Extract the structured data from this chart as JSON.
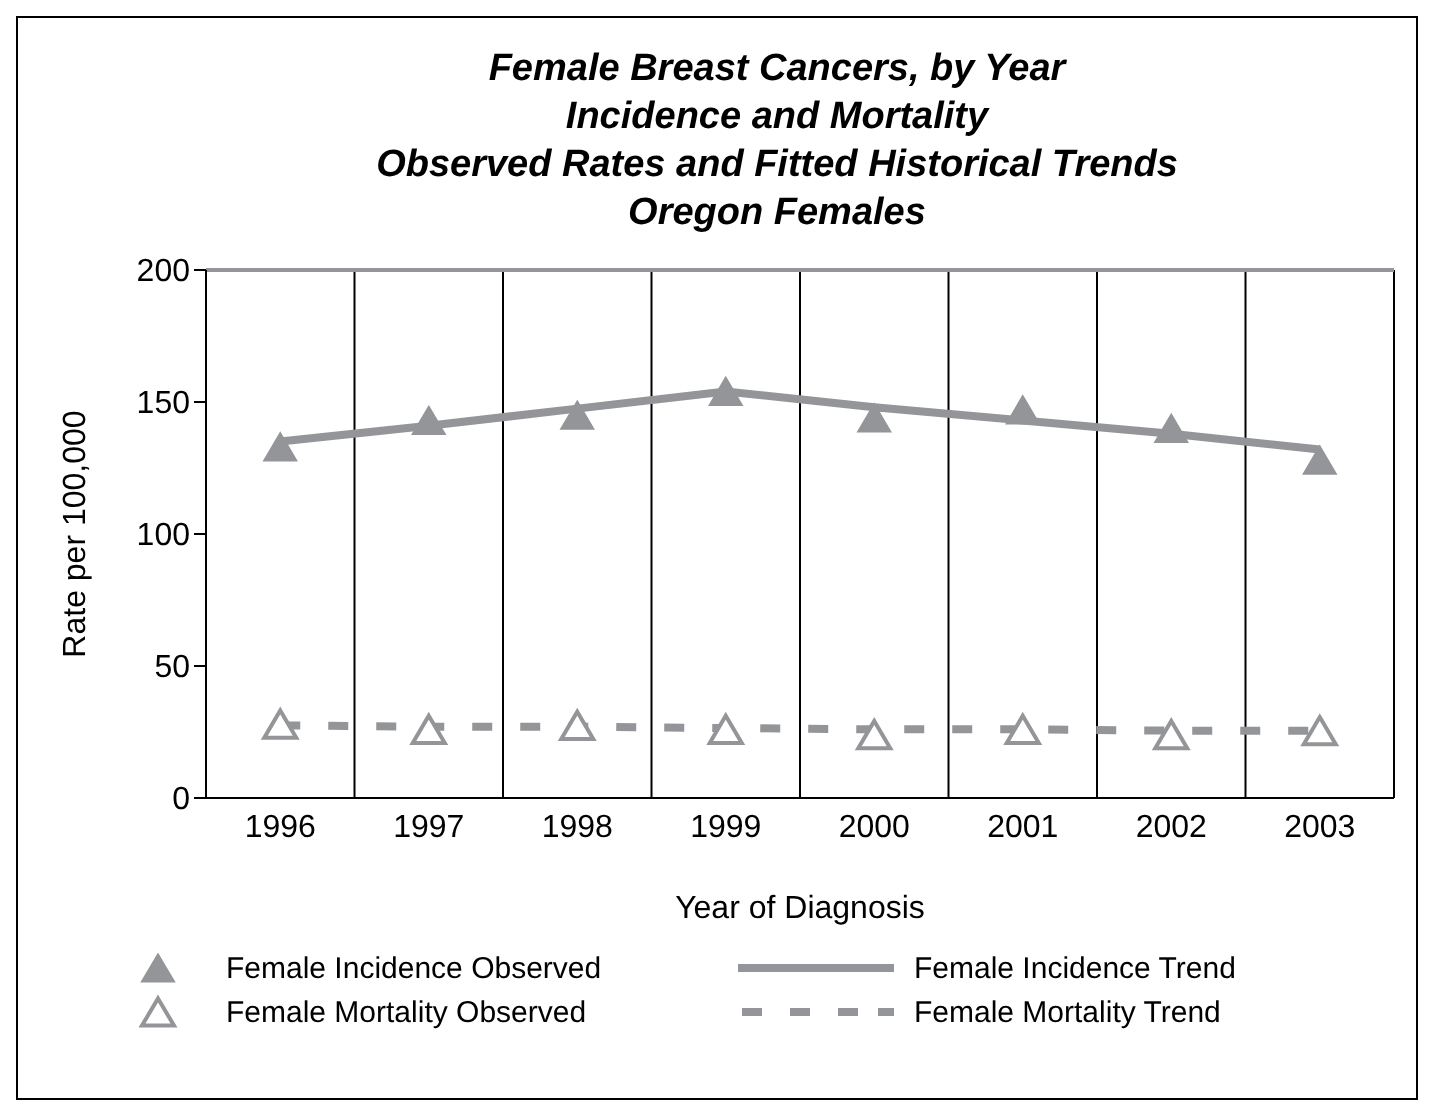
{
  "chart_data": {
    "type": "line",
    "title": "Female Breast Cancers, by Year\nIncidence and Mortality\nObserved Rates and Fitted Historical Trends\nOregon Females",
    "xlabel": "Year of Diagnosis",
    "ylabel": "Rate per 100,000",
    "categories": [
      "1996",
      "1997",
      "1998",
      "1999",
      "2000",
      "2001",
      "2002",
      "2003"
    ],
    "ylim": [
      0,
      200
    ],
    "yticks": [
      0,
      50,
      100,
      150,
      200
    ],
    "grid": "x",
    "legend": "bottom",
    "series": [
      {
        "name": "Female Incidence Observed",
        "type": "scatter",
        "marker": "triangle",
        "color": "#939598",
        "values": [
          133,
          143,
          145,
          154,
          144,
          147,
          140,
          128
        ]
      },
      {
        "name": "Female Incidence Trend",
        "type": "line",
        "marker": "none",
        "line_style": "solid",
        "color": "#939598",
        "values": [
          135,
          141,
          147.5,
          154,
          148,
          143,
          138,
          132
        ]
      },
      {
        "name": "Female Mortality Observed",
        "type": "scatter",
        "marker": "triangle",
        "color": "#939598",
        "values": [
          28,
          26,
          27.5,
          26,
          24,
          26,
          24,
          25.5
        ]
      },
      {
        "name": "Female Mortality Trend",
        "marker": "none",
        "line_style": "dashed",
        "color": "#939598",
        "values": [
          27.5,
          27,
          27,
          26.5,
          26,
          26,
          25.5,
          25.5
        ]
      }
    ]
  }
}
